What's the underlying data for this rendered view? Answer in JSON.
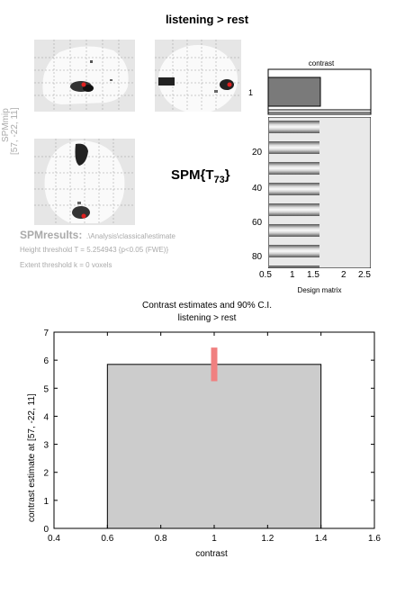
{
  "header": {
    "title": "listening > rest"
  },
  "spm": {
    "map_label_vert": "SPMmip",
    "coords_vert": "[57, -22, 11]",
    "stat_main": "SPM{T",
    "stat_sub": "73",
    "stat_close": "}",
    "results_title": "SPMresults:",
    "results_path": ".\\Analysis\\classical\\estimate",
    "height_threshold": "Height threshold T = 5.254943  {p<0.05 (FWE)}",
    "extent_threshold": "Extent threshold k = 0 voxels"
  },
  "contrast_panel": {
    "title": "contrast",
    "ytick": "1"
  },
  "design_matrix": {
    "xlabel": "Design matrix",
    "xticks": [
      "0.5",
      "1",
      "1.5",
      "2",
      "2.5"
    ],
    "yticks": [
      "20",
      "40",
      "60",
      "80"
    ]
  },
  "colors": {
    "bar": "#cccccc",
    "errorbar": "#f08080",
    "glass": "#e6e6e6",
    "blob": "#1a1a1a",
    "peak": "#e02020"
  },
  "chart_data": {
    "type": "bar",
    "title": "Contrast estimates and 90% C.I.",
    "subtitle": "listening > rest",
    "xlabel": "contrast",
    "ylabel": "contrast estimate at [57, -22, 11]",
    "categories": [
      "1"
    ],
    "x": [
      1
    ],
    "values": [
      5.85
    ],
    "ci": [
      [
        5.25,
        6.45
      ]
    ],
    "xlim": [
      0.4,
      1.6
    ],
    "ylim": [
      0,
      7
    ],
    "xticks": [
      "0.4",
      "0.6",
      "0.8",
      "1",
      "1.2",
      "1.4",
      "1.6"
    ],
    "yticks": [
      "0",
      "1",
      "2",
      "3",
      "4",
      "5",
      "6",
      "7"
    ],
    "grid": false,
    "bar_width": 0.8
  }
}
